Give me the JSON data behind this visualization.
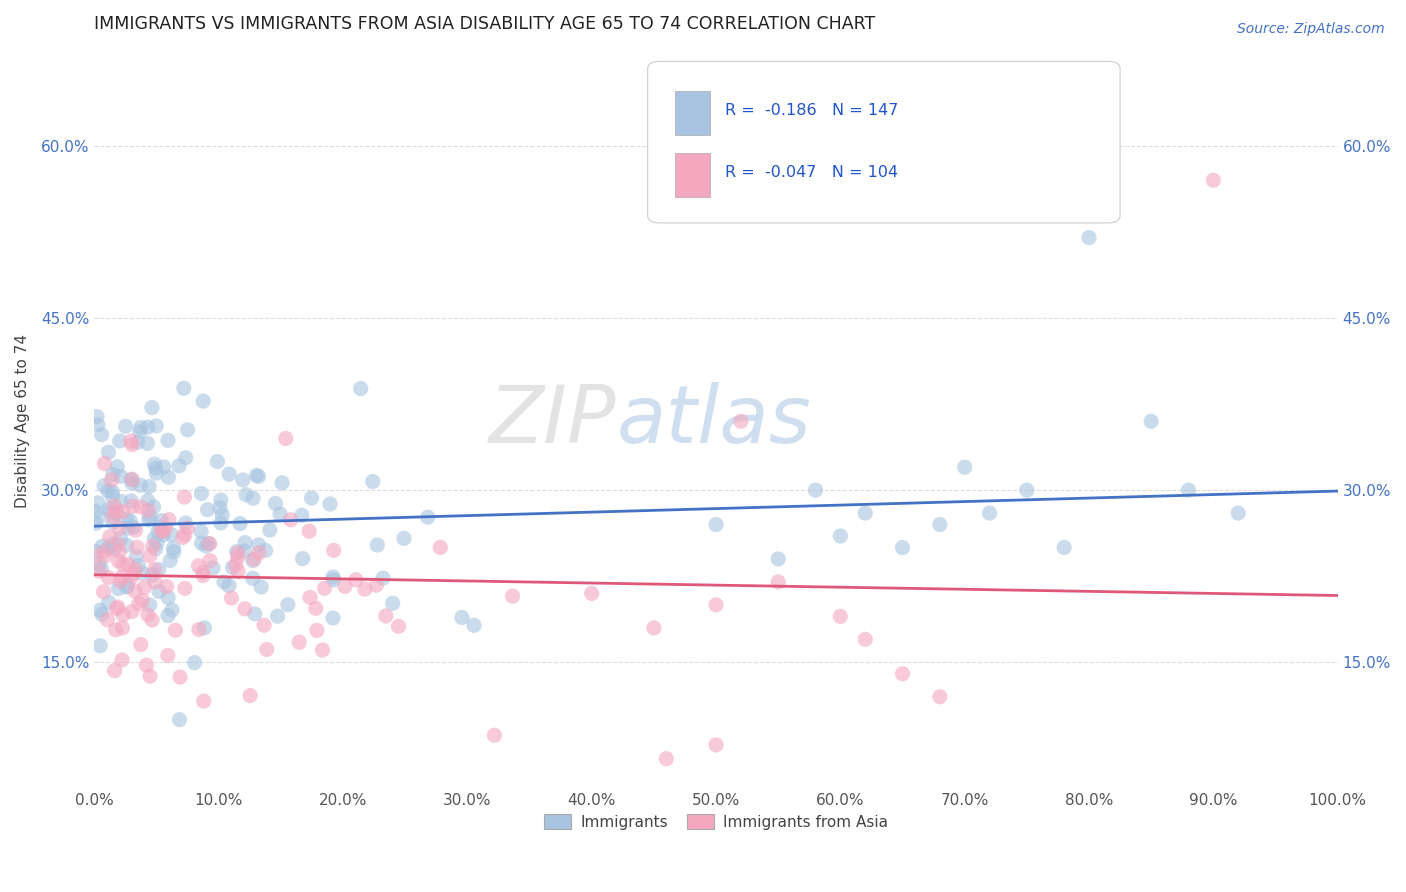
{
  "title": "IMMIGRANTS VS IMMIGRANTS FROM ASIA DISABILITY AGE 65 TO 74 CORRELATION CHART",
  "source": "Source: ZipAtlas.com",
  "xlabel": "",
  "ylabel": "Disability Age 65 to 74",
  "legend_labels": [
    "Immigrants",
    "Immigrants from Asia"
  ],
  "r_immigrants": -0.186,
  "n_immigrants": 147,
  "r_asia": -0.047,
  "n_asia": 104,
  "xlim": [
    0.0,
    1.0
  ],
  "ylim": [
    0.04,
    0.68
  ],
  "xticks": [
    0.0,
    0.1,
    0.2,
    0.3,
    0.4,
    0.5,
    0.6,
    0.7,
    0.8,
    0.9,
    1.0
  ],
  "xticklabels": [
    "0.0%",
    "10.0%",
    "20.0%",
    "30.0%",
    "40.0%",
    "50.0%",
    "60.0%",
    "70.0%",
    "80.0%",
    "90.0%",
    "100.0%"
  ],
  "ytick_positions": [
    0.15,
    0.3,
    0.45,
    0.6
  ],
  "yticklabels": [
    "15.0%",
    "30.0%",
    "45.0%",
    "60.0%"
  ],
  "color_immigrants": "#a8c4e0",
  "color_asia": "#f4a8c0",
  "line_color_immigrants": "#4472c4",
  "line_color_asia": "#e05878",
  "watermark_zip": "ZIP",
  "watermark_atlas": "atlas",
  "background_color": "#ffffff",
  "grid_color": "#cccccc",
  "title_color": "#333333",
  "legend_text_color": "#2255cc",
  "seed": 7
}
